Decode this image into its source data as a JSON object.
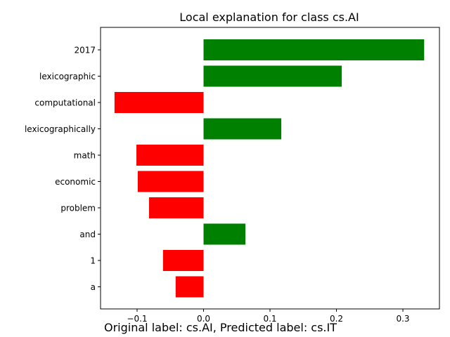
{
  "chart_data": {
    "type": "bar",
    "orientation": "horizontal",
    "title": "Local explanation for class cs.AI",
    "categories": [
      "2017",
      "lexicographic",
      "computational",
      "lexicographically",
      "math",
      "economic",
      "problem",
      "and",
      "1",
      "a"
    ],
    "values": [
      0.332,
      0.208,
      -0.134,
      0.117,
      -0.101,
      -0.099,
      -0.082,
      0.063,
      -0.061,
      -0.042
    ],
    "xlim": [
      -0.155,
      0.355
    ],
    "xticks": [
      -0.1,
      0.0,
      0.1,
      0.2,
      0.3
    ],
    "xtick_labels": [
      "−0.1",
      "0.0",
      "0.1",
      "0.2",
      "0.3"
    ],
    "positive_color": "#008000",
    "negative_color": "#ff0000",
    "grid": false
  },
  "caption": "Original label: cs.AI, Predicted label: cs.IT"
}
